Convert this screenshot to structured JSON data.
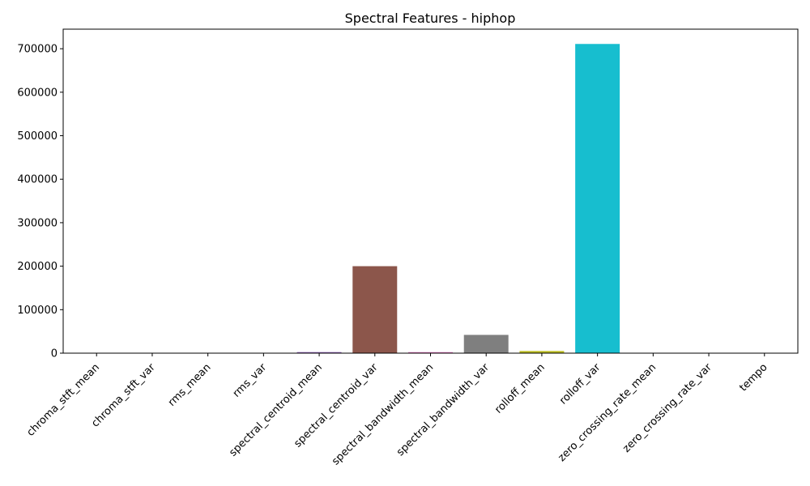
{
  "chart_data": {
    "type": "bar",
    "title": "Spectral Features - hiphop",
    "xlabel": "",
    "ylabel": "",
    "categories": [
      "chroma_stft_mean",
      "chroma_stft_var",
      "rms_mean",
      "rms_var",
      "spectral_centroid_mean",
      "spectral_centroid_var",
      "spectral_bandwidth_mean",
      "spectral_bandwidth_var",
      "rolloff_mean",
      "rolloff_var",
      "zero_crossing_rate_mean",
      "zero_crossing_rate_var",
      "tempo"
    ],
    "values": [
      0.4,
      0.09,
      0.15,
      0.006,
      2500,
      200000,
      2400,
      42000,
      5000,
      711000,
      0.12,
      0.003,
      120
    ],
    "colors": [
      "#1f77b4",
      "#ff7f0e",
      "#2ca02c",
      "#d62728",
      "#9467bd",
      "#8c564b",
      "#e377c2",
      "#7f7f7f",
      "#bcbd22",
      "#17becf",
      "#1f77b4",
      "#ff7f0e",
      "#2ca02c"
    ],
    "ylim": [
      0,
      745000
    ],
    "yticks": [
      0,
      100000,
      200000,
      300000,
      400000,
      500000,
      600000,
      700000
    ],
    "ytick_labels": [
      "0",
      "100000",
      "200000",
      "300000",
      "400000",
      "500000",
      "600000",
      "700000"
    ],
    "grid": false,
    "legend": "none"
  }
}
